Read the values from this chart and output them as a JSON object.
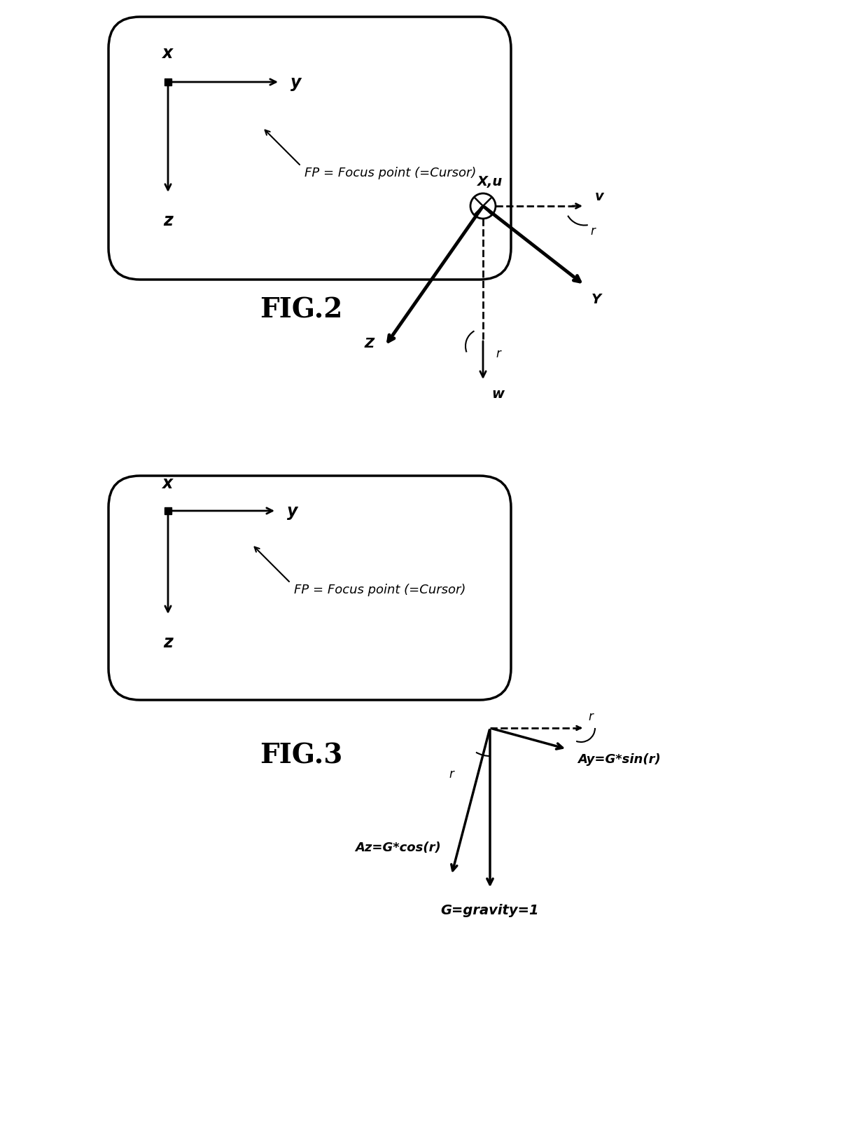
{
  "bg_color": "#ffffff",
  "fig2_label": "FIG.2",
  "fig3_label": "FIG.3",
  "fp_text": "FP = Focus point (=Cursor)",
  "x_label": "x",
  "y_label": "y",
  "z_label": "z",
  "Xu_label": "X,u",
  "Y_label": "Y",
  "Z_label": "Z",
  "v_label": "v",
  "w_label": "w",
  "r_label": "r",
  "Az_label": "Az=G*cos(r)",
  "Ay_label": "Ay=G*sin(r)",
  "G_label": "G=gravity=1"
}
